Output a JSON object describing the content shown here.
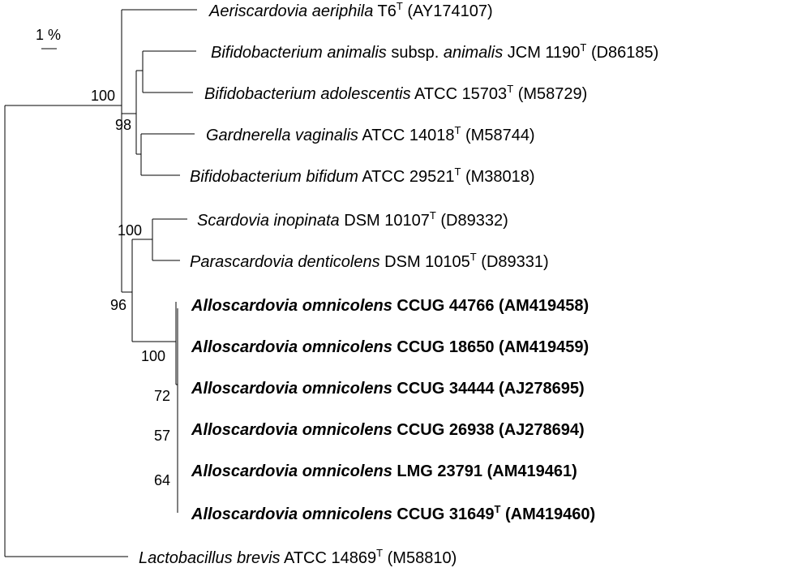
{
  "scale": {
    "label": "1 %"
  },
  "taxa": [
    {
      "id": "aeri",
      "genus_species": "Aeriscardovia aeriphila",
      "strain": "T6",
      "type_mark": "T",
      "accession": "(AY174107)",
      "bold": false
    },
    {
      "id": "banim",
      "genus_species": "Bifidobacterium animalis",
      "subsp_prefix": "subsp.",
      "subsp": "animalis",
      "strain": "JCM 1190",
      "type_mark": "T",
      "accession": "(D86185)",
      "bold": false
    },
    {
      "id": "badol",
      "genus_species": "Bifidobacterium adolescentis",
      "strain": "ATCC 15703",
      "type_mark": "T",
      "accession": "(M58729)",
      "bold": false
    },
    {
      "id": "gard",
      "genus_species": "Gardnerella vaginalis",
      "strain": "ATCC 14018",
      "type_mark": "T",
      "accession": "(M58744)",
      "bold": false
    },
    {
      "id": "bbif",
      "genus_species": "Bifidobacterium bifidum",
      "strain": "ATCC 29521",
      "type_mark": "T",
      "accession": "(M38018)",
      "bold": false
    },
    {
      "id": "scar",
      "genus_species": "Scardovia inopinata",
      "strain": "DSM 10107",
      "type_mark": "T",
      "accession": "(D89332)",
      "bold": false
    },
    {
      "id": "paras",
      "genus_species": "Parascardovia denticolens",
      "strain": "DSM 10105",
      "type_mark": "T",
      "accession": "(D89331)",
      "bold": false
    },
    {
      "id": "allo1",
      "genus_species": "Alloscardovia omnicolens",
      "strain": "CCUG 44766",
      "type_mark": "",
      "accession": "(AM419458)",
      "bold": true
    },
    {
      "id": "allo2",
      "genus_species": "Alloscardovia omnicolens",
      "strain": "CCUG 18650",
      "type_mark": "",
      "accession": "(AM419459)",
      "bold": true
    },
    {
      "id": "allo3",
      "genus_species": "Alloscardovia omnicolens",
      "strain": "CCUG 34444",
      "type_mark": "",
      "accession": "(AJ278695)",
      "bold": true
    },
    {
      "id": "allo4",
      "genus_species": "Alloscardovia omnicolens",
      "strain": "CCUG 26938",
      "type_mark": "",
      "accession": "(AJ278694)",
      "bold": true
    },
    {
      "id": "allo5",
      "genus_species": "Alloscardovia omnicolens",
      "strain": "LMG 23791",
      "type_mark": "",
      "accession": "(AM419461)",
      "bold": true
    },
    {
      "id": "allo6",
      "genus_species": "Alloscardovia omnicolens",
      "strain": "CCUG 31649",
      "type_mark": "T",
      "accession": "(AM419460)",
      "bold": true
    },
    {
      "id": "lacto",
      "genus_species": "Lactobacillus brevis",
      "strain": "ATCC 14869",
      "type_mark": "T",
      "accession": "(M58810)",
      "bold": false
    }
  ],
  "bootstrap_values": [
    "100",
    "98",
    "100",
    "96",
    "100",
    "72",
    "57",
    "64"
  ]
}
